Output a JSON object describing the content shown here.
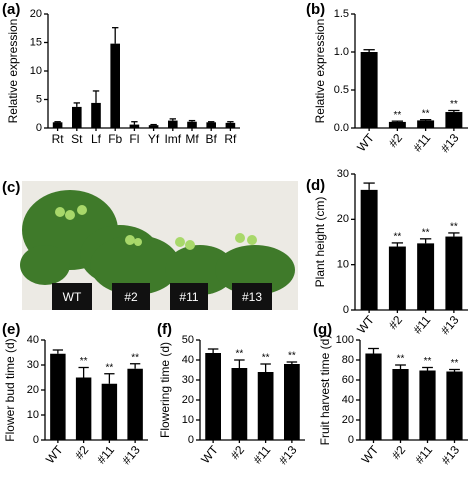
{
  "chart_data": [
    {
      "type": "bar",
      "panel_label": "(a)",
      "y_label": "Relative expression",
      "color": "#000000",
      "categories": [
        "Rt",
        "St",
        "Lf",
        "Fb",
        "Fl",
        "Yf",
        "Imf",
        "Mf",
        "Bf",
        "Rf"
      ],
      "values": [
        1.0,
        3.7,
        4.4,
        14.8,
        0.6,
        0.5,
        1.3,
        1.1,
        1.0,
        0.9
      ],
      "errors": [
        0.1,
        0.7,
        2.1,
        2.8,
        0.5,
        0.1,
        0.3,
        0.2,
        0.1,
        0.2
      ],
      "ylim": [
        0,
        20
      ],
      "yticks": [
        0,
        5,
        10,
        15,
        20
      ]
    },
    {
      "type": "bar",
      "panel_label": "(b)",
      "y_label": "Relative expression",
      "color": "#000000",
      "categories": [
        "WT",
        "#2",
        "#11",
        "#13"
      ],
      "values": [
        1.0,
        0.08,
        0.1,
        0.21
      ],
      "errors": [
        0.03,
        0.01,
        0.01,
        0.02
      ],
      "significance": [
        null,
        "**",
        "**",
        "**"
      ],
      "ylim": [
        0,
        1.5
      ],
      "yticks": [
        {
          "value": 0,
          "label": "0.0"
        },
        0.5,
        {
          "value": 1,
          "label": "1.0"
        },
        1.5
      ]
    },
    {
      "type": "bar",
      "panel_label": "(d)",
      "y_label": "Plant height (cm)",
      "color": "#000000",
      "categories": [
        "WT",
        "#2",
        "#11",
        "#13"
      ],
      "values": [
        26.5,
        14,
        14.7,
        16.2
      ],
      "errors": [
        1.5,
        0.8,
        1,
        0.8
      ],
      "significance": [
        null,
        "**",
        "**",
        "**"
      ],
      "ylim": [
        0,
        30
      ],
      "yticks": [
        0,
        10,
        20,
        30
      ]
    },
    {
      "type": "bar",
      "panel_label": "(e)",
      "y_label": "Flower bud time (d)",
      "color": "#000000",
      "categories": [
        "WT",
        "#2",
        "#11",
        "#13"
      ],
      "values": [
        34.5,
        25,
        22.5,
        28.5
      ],
      "errors": [
        1.5,
        4,
        4,
        2
      ],
      "significance": [
        null,
        "**",
        "**",
        "**"
      ],
      "ylim": [
        0,
        40
      ],
      "yticks": [
        0,
        10,
        20,
        30,
        40
      ]
    },
    {
      "type": "bar",
      "panel_label": "(f)",
      "y_label": "Flowering time (d)",
      "color": "#000000",
      "categories": [
        "WT",
        "#2",
        "#11",
        "#13"
      ],
      "values": [
        43.5,
        36,
        34,
        38
      ],
      "errors": [
        2,
        4,
        4,
        1
      ],
      "significance": [
        null,
        "**",
        "**",
        "**"
      ],
      "ylim": [
        0,
        50
      ],
      "yticks": [
        0,
        10,
        20,
        30,
        40,
        50
      ]
    },
    {
      "type": "bar",
      "panel_label": "(g)",
      "y_label": "Fruit harvest time (d)",
      "color": "#000000",
      "categories": [
        "WT",
        "#2",
        "#11",
        "#13"
      ],
      "values": [
        86.5,
        71,
        69.5,
        68.5
      ],
      "errors": [
        5,
        4,
        3,
        2
      ],
      "significance": [
        null,
        "**",
        "**",
        "**"
      ],
      "ylim": [
        0,
        100
      ],
      "yticks": [
        0,
        20,
        40,
        60,
        80,
        100
      ]
    }
  ],
  "photo": {
    "panel_label": "(c)",
    "labels": [
      "WT",
      "#2",
      "#11",
      "#13"
    ]
  }
}
